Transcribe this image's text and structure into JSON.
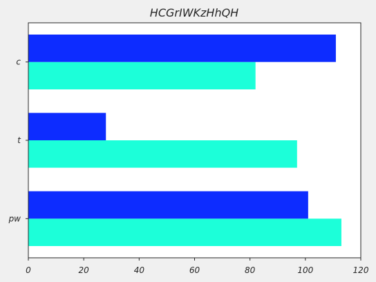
{
  "chart_data": {
    "type": "bar",
    "orientation": "horizontal",
    "title": "HCGrIWKzHhQH",
    "xlabel": "",
    "ylabel": "",
    "categories": [
      "pw",
      "t",
      "c"
    ],
    "series": [
      {
        "color": "#1cffd9",
        "values": [
          113,
          97,
          82
        ]
      },
      {
        "color": "#0d2cff",
        "values": [
          101,
          28,
          111
        ]
      }
    ],
    "xlim": [
      0,
      120
    ],
    "xticks": [
      0,
      20,
      40,
      60,
      80,
      100,
      120
    ],
    "grid": false,
    "legend": "none"
  }
}
